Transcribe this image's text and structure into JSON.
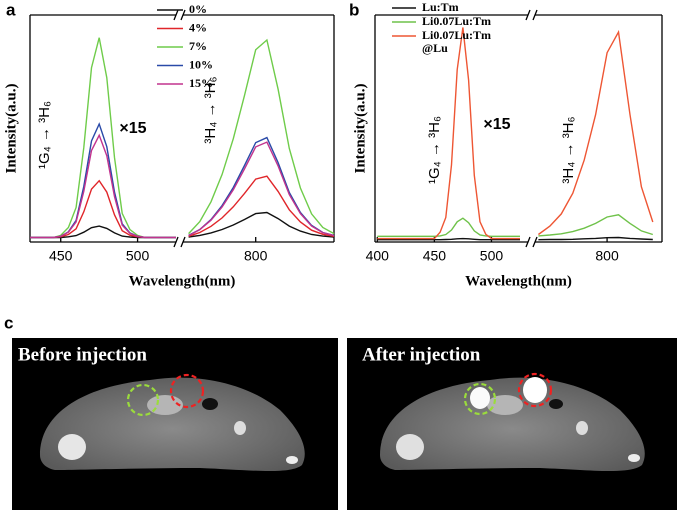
{
  "panel_labels": [
    "a",
    "b",
    "c"
  ],
  "chart_data": [
    {
      "type": "line",
      "xlabel": "Wavelength(nm)",
      "ylabel": "Intensity(a.u.)",
      "x_segments": [
        {
          "xlim": [
            430,
            525
          ],
          "xticks": [
            450,
            500
          ]
        },
        {
          "xlim": [
            735,
            870
          ],
          "xticks": [
            800
          ]
        }
      ],
      "ylim": [
        0,
        100
      ],
      "legend": "upper right",
      "annotations": [
        "¹G₄ → ³H₆",
        "×15",
        "³H₄ → ³H₆"
      ],
      "x": [
        430,
        435,
        440,
        445,
        450,
        455,
        460,
        465,
        470,
        475,
        480,
        485,
        490,
        495,
        500,
        505,
        510,
        515,
        520,
        525,
        740,
        750,
        760,
        770,
        780,
        790,
        800,
        810,
        820,
        830,
        840,
        850,
        860,
        870
      ],
      "series": [
        {
          "name": "0%",
          "color": "#111111",
          "values": [
            2,
            2,
            2,
            2,
            2,
            2.3,
            2.8,
            4.3,
            6.3,
            7,
            6,
            4,
            2.6,
            2.2,
            2,
            2,
            2,
            2,
            2,
            2,
            2.2,
            2.9,
            4,
            5.5,
            7.5,
            9.9,
            12.5,
            13,
            10.3,
            7,
            4.8,
            3.3,
            2.6,
            2.2
          ]
        },
        {
          "name": "4%",
          "color": "#e0262a",
          "values": [
            2,
            2,
            2,
            2,
            2.3,
            3.3,
            5.8,
            13.3,
            23.3,
            27,
            22,
            12,
            5,
            3,
            2.3,
            2,
            2,
            2,
            2,
            2,
            2.5,
            4.2,
            6.9,
            10.6,
            15.5,
            21.4,
            27.7,
            29,
            22.3,
            14.2,
            8.8,
            5.2,
            3.4,
            2.5
          ]
        },
        {
          "name": "7%",
          "color": "#6fcc4a",
          "values": [
            2,
            2,
            2,
            2,
            2.9,
            6.4,
            15.2,
            41.6,
            76.8,
            90,
            72.4,
            37.2,
            12.6,
            5.5,
            2.9,
            2,
            2,
            2,
            2,
            2,
            3.7,
            9,
            17.7,
            29.8,
            45.5,
            64.6,
            84.7,
            89,
            67.3,
            41.2,
            23.8,
            12.4,
            6.4,
            3.7
          ]
        },
        {
          "name": "10%",
          "color": "#2a4aa8",
          "values": [
            2,
            2,
            2,
            2,
            2.5,
            4.5,
            9.5,
            24.5,
            44.5,
            52,
            42,
            22,
            8,
            4,
            2.5,
            2,
            2,
            2,
            2,
            2,
            2.9,
            5.5,
            9.9,
            16.1,
            24,
            33.7,
            43.8,
            46,
            35,
            21.8,
            13,
            7.3,
            4.2,
            2.9
          ]
        },
        {
          "name": "15%",
          "color": "#c2338e",
          "values": [
            2,
            2,
            2,
            2,
            2.5,
            4.3,
            8.8,
            22.3,
            40.3,
            47,
            38,
            20,
            7.4,
            3.8,
            2.5,
            2,
            2,
            2,
            2,
            2,
            2.8,
            5.4,
            9.6,
            15.4,
            23,
            32.2,
            41.9,
            44,
            33.5,
            20.9,
            12.5,
            7,
            4.1,
            2.8
          ]
        }
      ]
    },
    {
      "type": "line",
      "xlabel": "Wavelength(nm)",
      "ylabel": "Intensity(a.u.)",
      "x_segments": [
        {
          "xlim": [
            398,
            532
          ],
          "xticks": [
            400,
            450,
            500
          ]
        },
        {
          "xlim": [
            737,
            848
          ],
          "xticks": [
            800
          ]
        }
      ],
      "ylim": [
        0,
        100
      ],
      "legend": "upper left",
      "annotations": [
        "¹G₄ → ³H₆",
        "×15",
        "³H₄ → ³H₆"
      ],
      "x": [
        400,
        405,
        410,
        415,
        420,
        425,
        430,
        435,
        440,
        445,
        450,
        455,
        460,
        465,
        470,
        475,
        480,
        485,
        490,
        495,
        500,
        505,
        510,
        515,
        520,
        525,
        740,
        750,
        760,
        770,
        780,
        790,
        800,
        810,
        820,
        830,
        840
      ],
      "series": [
        {
          "name": "Lu:Tm",
          "color": "#111111",
          "values": [
            1,
            1,
            1,
            1,
            1,
            1,
            1,
            1,
            1,
            1,
            1,
            1,
            1.1,
            1.2,
            1.4,
            1.5,
            1.4,
            1.2,
            1,
            1,
            1,
            1,
            1,
            1,
            1,
            1,
            1,
            1.1,
            1.1,
            1.2,
            1.4,
            1.6,
            1.9,
            2,
            1.6,
            1.3,
            1.1
          ]
        },
        {
          "name": "Li0.07Lu:Tm",
          "color": "#6fc24a",
          "values": [
            2.5,
            2.5,
            2.5,
            2.5,
            2.5,
            2.5,
            2.5,
            2.5,
            2.5,
            2.5,
            2.5,
            2.7,
            3.3,
            5.3,
            8.9,
            10.5,
            8.5,
            4.9,
            3.1,
            2.7,
            2.5,
            2.5,
            2.5,
            2.5,
            2.5,
            2.5,
            2.7,
            3.1,
            3.6,
            4.6,
            6.1,
            8.2,
            11,
            12,
            8.2,
            4.9,
            3.3
          ]
        },
        {
          "name": "Li0.07Lu:Tm @Lu",
          "color": "#ee5634",
          "values": [
            1.5,
            1.5,
            1.5,
            1.5,
            1.5,
            1.5,
            1.5,
            1.5,
            1.5,
            1.5,
            1.5,
            4.3,
            10.8,
            34,
            75.9,
            94.5,
            71.3,
            29.4,
            8.9,
            3.4,
            1.5,
            1.5,
            1.5,
            1.5,
            1.5,
            1.5,
            3.3,
            7,
            12.4,
            21.5,
            36.1,
            56.1,
            83.4,
            92.5,
            56.1,
            24.3,
            8.8
          ]
        }
      ]
    }
  ],
  "images": [
    {
      "title": "Before injection"
    },
    {
      "title": "After injection"
    }
  ]
}
